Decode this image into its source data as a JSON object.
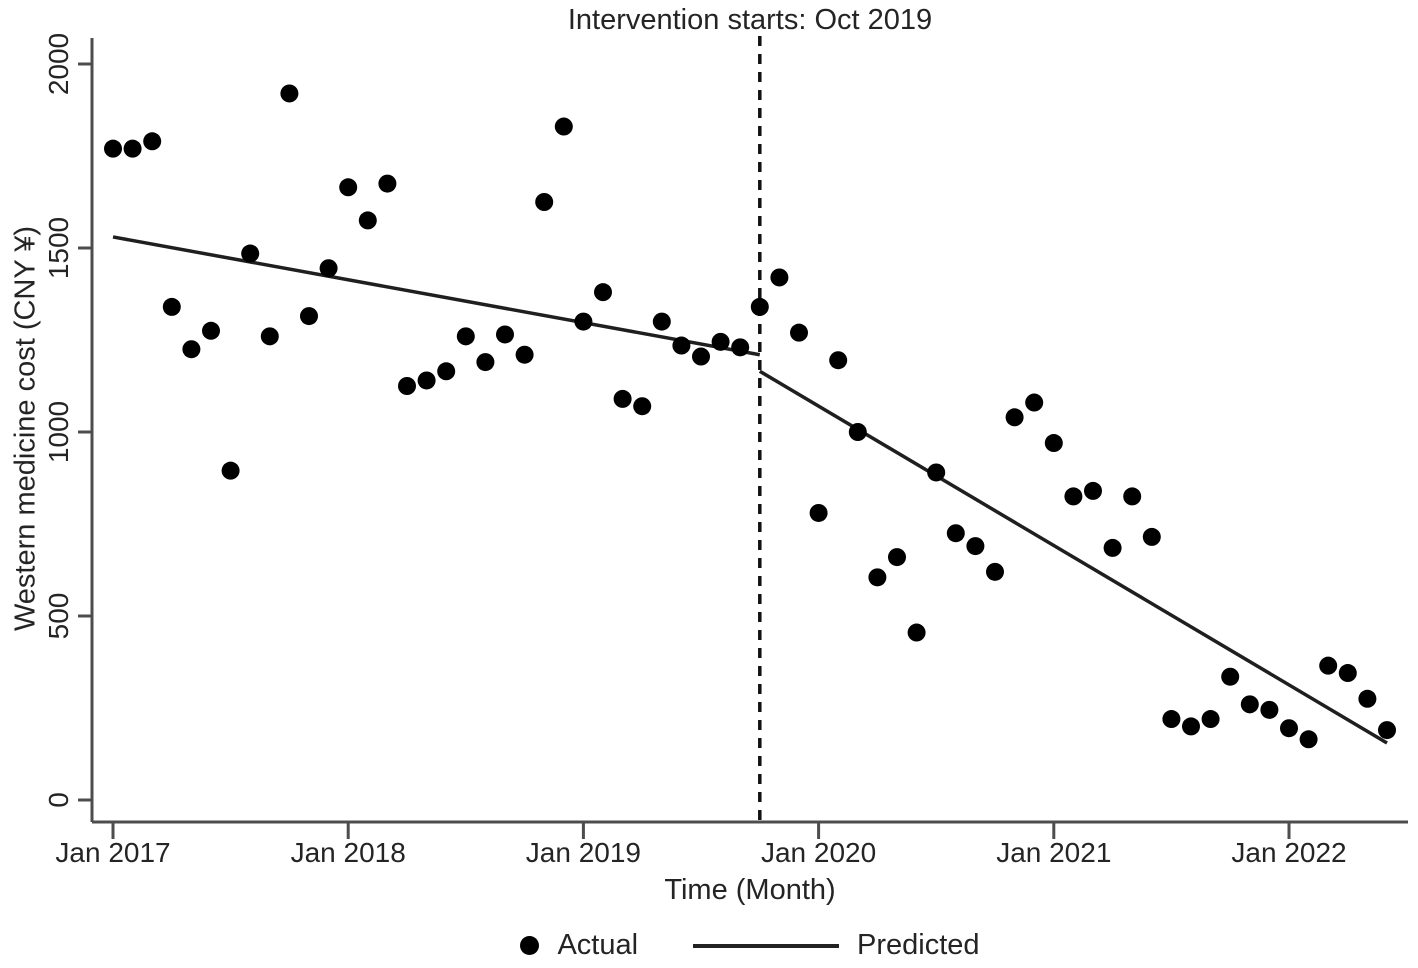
{
  "chart_data": {
    "type": "scatter",
    "title": "Intervention starts: Oct 2019",
    "xlabel": "Time (Month)",
    "ylabel": "Western medicine cost (CNY ¥)",
    "ylim": [
      0,
      2000
    ],
    "yticks": [
      0,
      500,
      1000,
      1500,
      2000
    ],
    "x_tick_labels": [
      "Jan 2017",
      "Jan 2018",
      "Jan 2019",
      "Jan 2020",
      "Jan 2021",
      "Jan 2022"
    ],
    "x_tick_months": [
      0,
      12,
      24,
      36,
      48,
      60
    ],
    "xlim_months": [
      -1.1,
      66
    ],
    "grid": false,
    "legend_position": "bottom-center",
    "intervention": {
      "label": "Intervention starts: Oct 2019",
      "month": "Oct 2019",
      "month_index": 33
    },
    "series": [
      {
        "name": "Actual",
        "type": "scatter",
        "points": [
          {
            "m": "Jan 2017",
            "v": 1770
          },
          {
            "m": "Feb 2017",
            "v": 1770
          },
          {
            "m": "Mar 2017",
            "v": 1790
          },
          {
            "m": "Apr 2017",
            "v": 1340
          },
          {
            "m": "May 2017",
            "v": 1225
          },
          {
            "m": "Jun 2017",
            "v": 1275
          },
          {
            "m": "Jul 2017",
            "v": 895
          },
          {
            "m": "Aug 2017",
            "v": 1485
          },
          {
            "m": "Sep 2017",
            "v": 1260
          },
          {
            "m": "Oct 2017",
            "v": 1920
          },
          {
            "m": "Nov 2017",
            "v": 1315
          },
          {
            "m": "Dec 2017",
            "v": 1445
          },
          {
            "m": "Jan 2018",
            "v": 1665
          },
          {
            "m": "Feb 2018",
            "v": 1575
          },
          {
            "m": "Mar 2018",
            "v": 1675
          },
          {
            "m": "Apr 2018",
            "v": 1125
          },
          {
            "m": "May 2018",
            "v": 1140
          },
          {
            "m": "Jun 2018",
            "v": 1165
          },
          {
            "m": "Jul 2018",
            "v": 1260
          },
          {
            "m": "Aug 2018",
            "v": 1190
          },
          {
            "m": "Sep 2018",
            "v": 1265
          },
          {
            "m": "Oct 2018",
            "v": 1210
          },
          {
            "m": "Nov 2018",
            "v": 1625
          },
          {
            "m": "Dec 2018",
            "v": 1830
          },
          {
            "m": "Jan 2019",
            "v": 1300
          },
          {
            "m": "Feb 2019",
            "v": 1380
          },
          {
            "m": "Mar 2019",
            "v": 1090
          },
          {
            "m": "Apr 2019",
            "v": 1070
          },
          {
            "m": "May 2019",
            "v": 1300
          },
          {
            "m": "Jun 2019",
            "v": 1235
          },
          {
            "m": "Jul 2019",
            "v": 1205
          },
          {
            "m": "Aug 2019",
            "v": 1245
          },
          {
            "m": "Sep 2019",
            "v": 1230
          },
          {
            "m": "Oct 2019",
            "v": 1340
          },
          {
            "m": "Nov 2019",
            "v": 1420
          },
          {
            "m": "Dec 2019",
            "v": 1270
          },
          {
            "m": "Jan 2020",
            "v": 780
          },
          {
            "m": "Feb 2020",
            "v": 1195
          },
          {
            "m": "Mar 2020",
            "v": 1000
          },
          {
            "m": "Apr 2020",
            "v": 605
          },
          {
            "m": "May 2020",
            "v": 660
          },
          {
            "m": "Jun 2020",
            "v": 455
          },
          {
            "m": "Jul 2020",
            "v": 890
          },
          {
            "m": "Aug 2020",
            "v": 725
          },
          {
            "m": "Sep 2020",
            "v": 690
          },
          {
            "m": "Oct 2020",
            "v": 620
          },
          {
            "m": "Nov 2020",
            "v": 1040
          },
          {
            "m": "Dec 2020",
            "v": 1080
          },
          {
            "m": "Jan 2021",
            "v": 970
          },
          {
            "m": "Feb 2021",
            "v": 825
          },
          {
            "m": "Mar 2021",
            "v": 840
          },
          {
            "m": "Apr 2021",
            "v": 685
          },
          {
            "m": "May 2021",
            "v": 825
          },
          {
            "m": "Jun 2021",
            "v": 715
          },
          {
            "m": "Jul 2021",
            "v": 220
          },
          {
            "m": "Aug 2021",
            "v": 200
          },
          {
            "m": "Sep 2021",
            "v": 220
          },
          {
            "m": "Oct 2021",
            "v": 335
          },
          {
            "m": "Nov 2021",
            "v": 260
          },
          {
            "m": "Dec 2021",
            "v": 245
          },
          {
            "m": "Jan 2022",
            "v": 195
          },
          {
            "m": "Feb 2022",
            "v": 165
          },
          {
            "m": "Mar 2022",
            "v": 365
          },
          {
            "m": "Apr 2022",
            "v": 345
          },
          {
            "m": "May 2022",
            "v": 275
          },
          {
            "m": "Jun 2022",
            "v": 190
          }
        ]
      },
      {
        "name": "Predicted",
        "type": "line",
        "segments": [
          {
            "months": [
              0,
              33
            ],
            "values": [
              1530,
              1210
            ]
          },
          {
            "months": [
              33,
              65
            ],
            "values": [
              1165,
              155
            ]
          }
        ]
      }
    ],
    "colors": {
      "points": "#000000",
      "predicted_line": "#1f1f1f",
      "dashed_line": "#111111",
      "axis": "#4d4d4d",
      "text": "#242424"
    }
  }
}
